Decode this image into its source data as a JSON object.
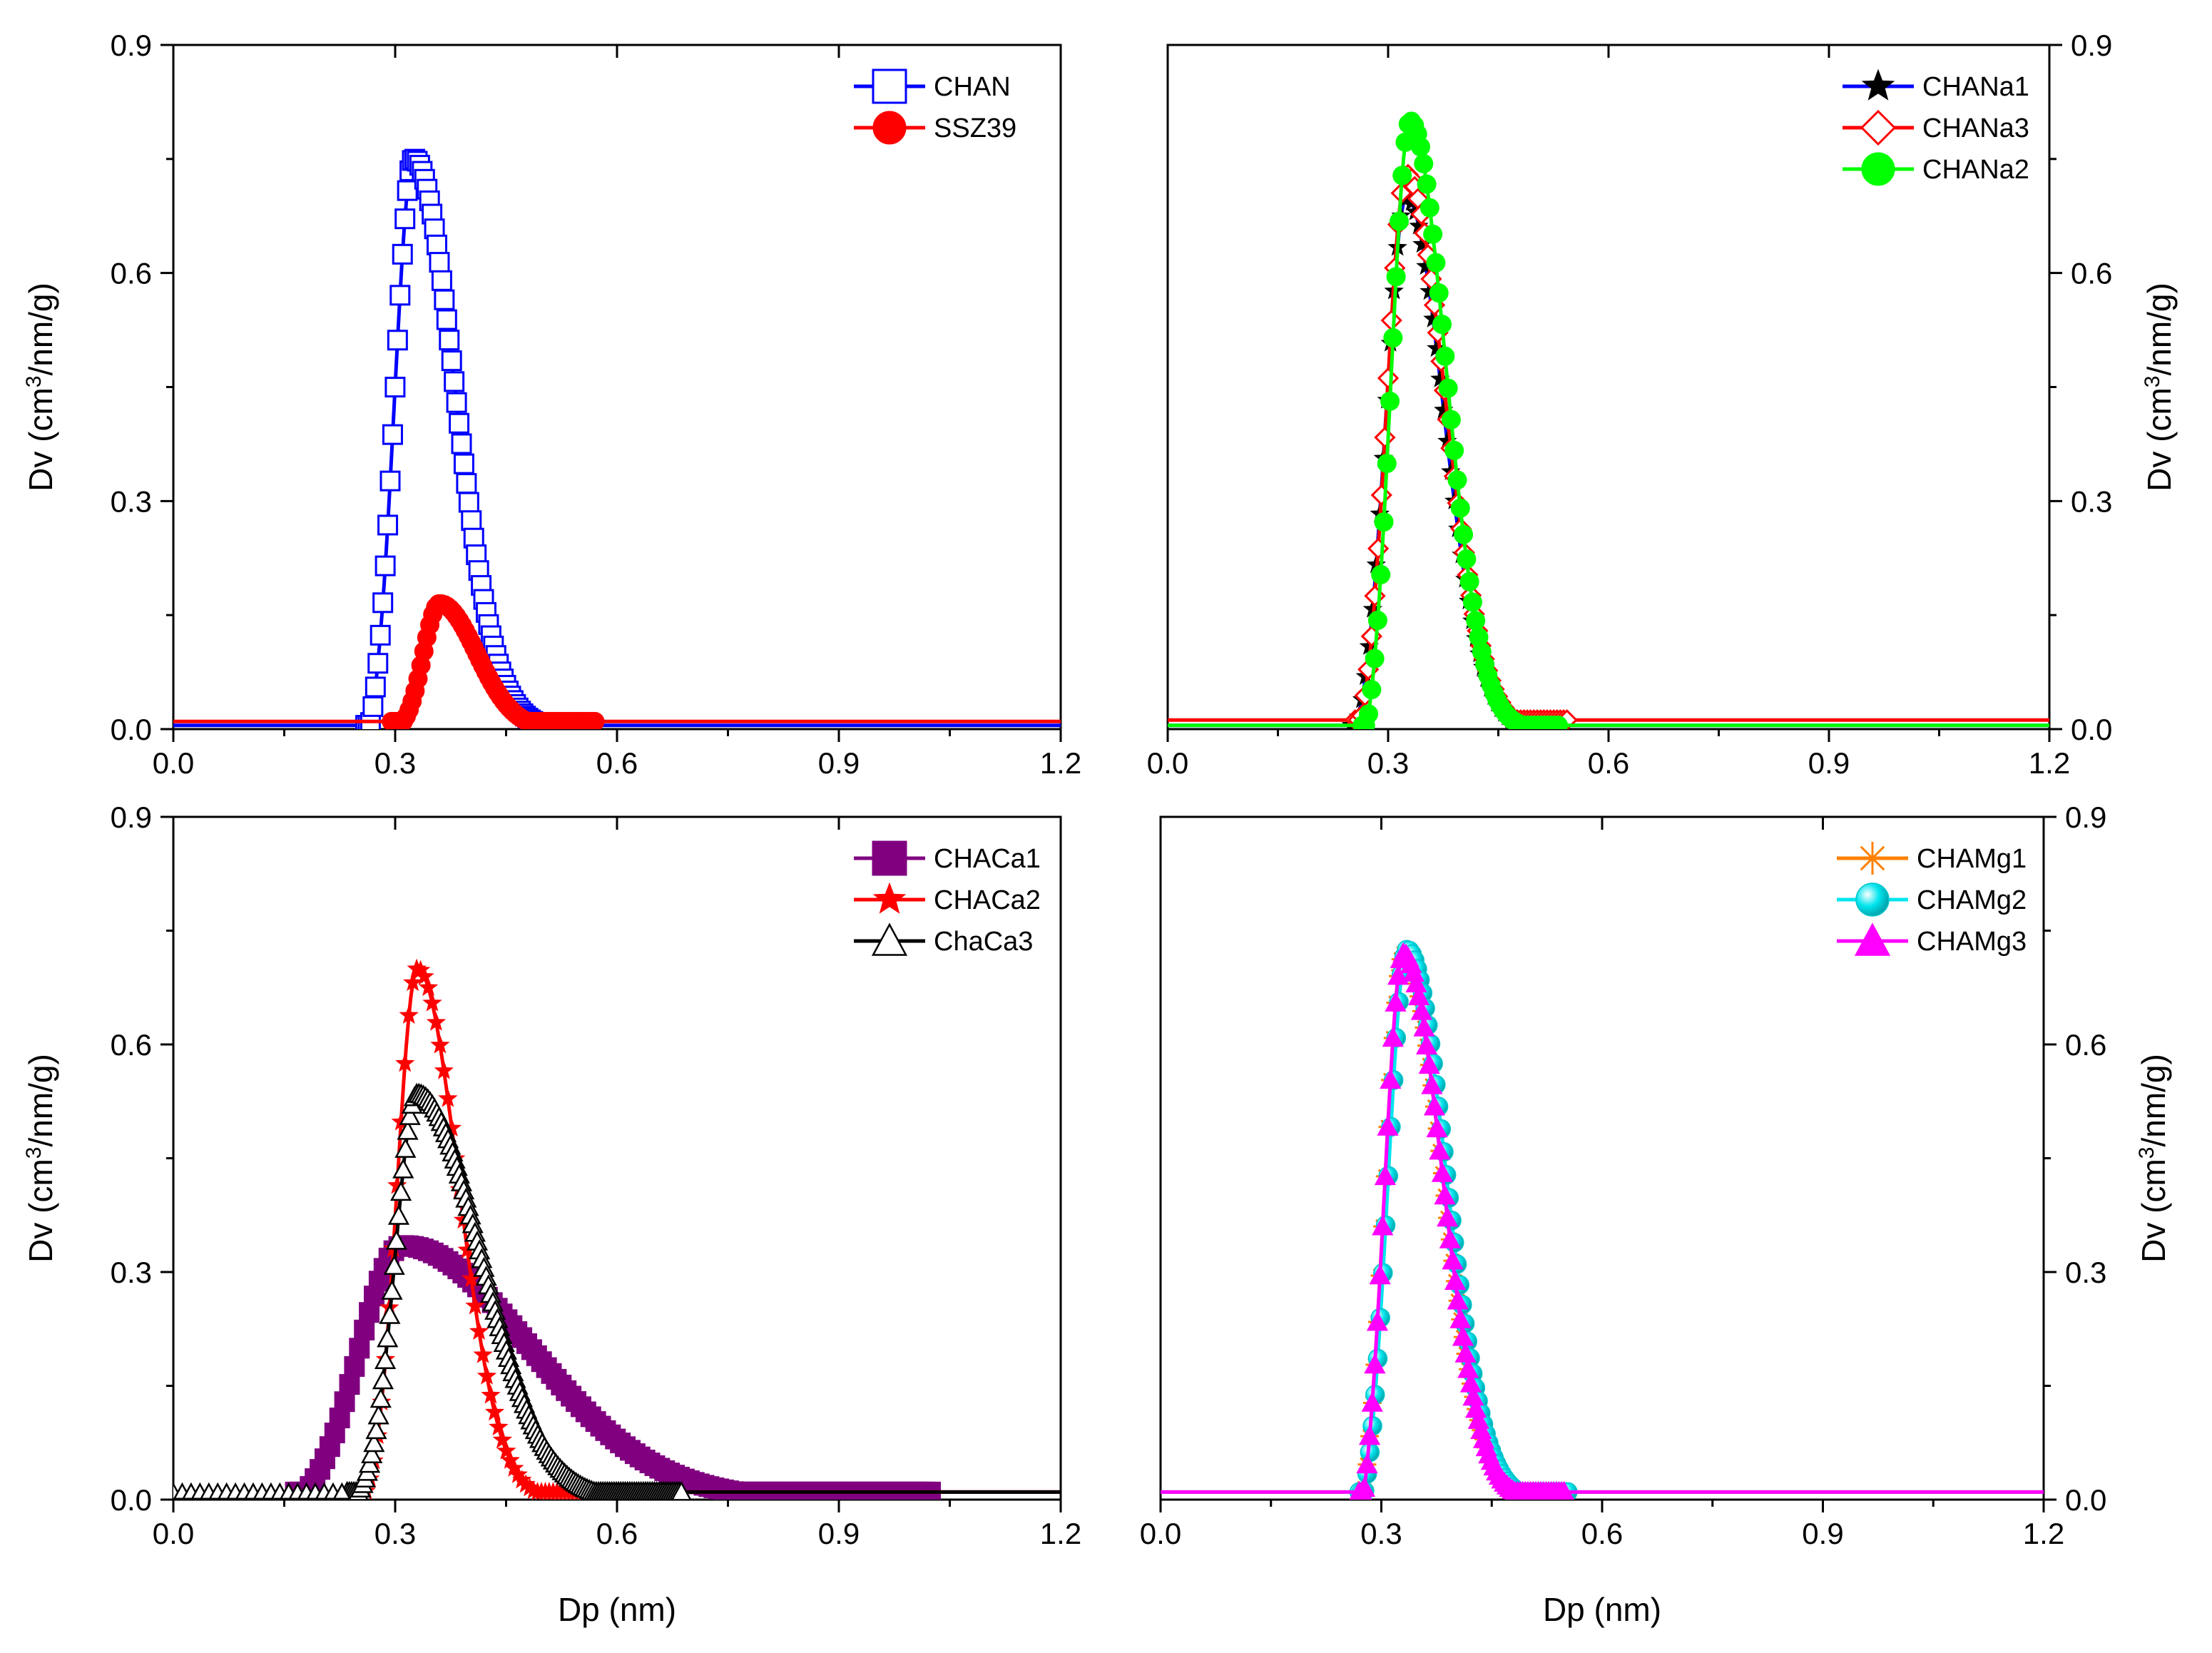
{
  "chart_data": [
    {
      "type": "line",
      "panel": "top-left",
      "xlabel": "",
      "ylabel": "Dv (cm3/nm/g)",
      "xlim": [
        0.0,
        1.2
      ],
      "ylim": [
        0.0,
        0.9
      ],
      "xticks": [
        "0.0",
        "0.3",
        "0.6",
        "0.9",
        "1.2"
      ],
      "yticks": [
        "0.0",
        "0.3",
        "0.6",
        "0.9"
      ],
      "yaxis_side": "left",
      "legend_position": "top-right",
      "series": [
        {
          "name": "CHAN",
          "color": "#0000ff",
          "marker": "square-open",
          "peak_x": 0.325,
          "peak_y": 0.75,
          "onset_x": 0.265,
          "sigma_left": 0.026,
          "sigma_right": 0.055,
          "baseline": 0.005,
          "points": 90
        },
        {
          "name": "SSZ39",
          "color": "#ff0000",
          "marker": "circle-filled",
          "peak_x": 0.36,
          "peak_y": 0.165,
          "onset_x": 0.3,
          "sigma_left": 0.022,
          "sigma_right": 0.05,
          "baseline": 0.01,
          "points": 70
        }
      ]
    },
    {
      "type": "line",
      "panel": "top-right",
      "xlabel": "",
      "ylabel": "Dv (cm3/nm/g)",
      "xlim": [
        0.0,
        1.2
      ],
      "ylim": [
        0.0,
        0.9
      ],
      "xticks": [
        "0.0",
        "0.3",
        "0.6",
        "0.9",
        "1.2"
      ],
      "yticks": [
        "0.0",
        "0.3",
        "0.6",
        "0.9"
      ],
      "yaxis_side": "right",
      "legend_position": "top-right",
      "series": [
        {
          "name": "CHANa1",
          "color": "#000000",
          "line_color": "#0000ff",
          "marker": "star-filled",
          "peak_x": 0.325,
          "peak_y": 0.7,
          "onset_x": 0.255,
          "sigma_left": 0.028,
          "sigma_right": 0.05,
          "baseline": 0.005,
          "points": 60
        },
        {
          "name": "CHANa3",
          "color": "#ff0000",
          "marker": "diamond-open",
          "peak_x": 0.325,
          "peak_y": 0.73,
          "onset_x": 0.26,
          "sigma_left": 0.027,
          "sigma_right": 0.052,
          "baseline": 0.012,
          "points": 65
        },
        {
          "name": "CHANa2",
          "color": "#00ff00",
          "marker": "circle-filled",
          "peak_x": 0.33,
          "peak_y": 0.8,
          "onset_x": 0.27,
          "sigma_left": 0.026,
          "sigma_right": 0.048,
          "baseline": 0.005,
          "points": 65
        }
      ]
    },
    {
      "type": "line",
      "panel": "bottom-left",
      "xlabel": "Dp (nm)",
      "ylabel": "Dv (cm3/nm/g)",
      "xlim": [
        0.0,
        1.2
      ],
      "ylim": [
        0.0,
        0.9
      ],
      "xticks": [
        "0.0",
        "0.3",
        "0.6",
        "0.9",
        "1.2"
      ],
      "yticks": [
        "0.0",
        "0.3",
        "0.6",
        "0.9"
      ],
      "yaxis_side": "left",
      "legend_position": "top-right",
      "series": [
        {
          "name": "CHACa1",
          "color": "#800080",
          "marker": "square-filled",
          "peak_x": 0.31,
          "peak_y": 0.335,
          "onset_x": 0.17,
          "sigma_left": 0.06,
          "sigma_right": 0.17,
          "baseline": 0.01,
          "points": 130
        },
        {
          "name": "CHACa2",
          "color": "#ff0000",
          "marker": "star-filled",
          "peak_x": 0.33,
          "peak_y": 0.7,
          "onset_x": 0.255,
          "sigma_left": 0.027,
          "sigma_right": 0.055,
          "baseline": 0.01,
          "points": 60
        },
        {
          "name": "ChaCa3",
          "color": "#000000",
          "marker": "triangle-open",
          "peak_x": 0.33,
          "peak_y": 0.535,
          "onset_x": 0.24,
          "sigma_left": 0.03,
          "sigma_right": 0.085,
          "baseline": 0.01,
          "points": 150
        }
      ]
    },
    {
      "type": "line",
      "panel": "bottom-right",
      "xlabel": "Dp (nm)",
      "ylabel": "Dv (cm3/nm/g)",
      "xlim": [
        0.0,
        1.2
      ],
      "ylim": [
        0.0,
        0.9
      ],
      "xticks": [
        "0.0",
        "0.3",
        "0.6",
        "0.9",
        "1.2"
      ],
      "yticks": [
        "0.0",
        "0.3",
        "0.6",
        "0.9"
      ],
      "yaxis_side": "right",
      "legend_position": "top-right",
      "series": [
        {
          "name": "CHAMg1",
          "color": "#ff8000",
          "marker": "asterisk",
          "peak_x": 0.33,
          "peak_y": 0.72,
          "onset_x": 0.275,
          "sigma_left": 0.026,
          "sigma_right": 0.052,
          "baseline": 0.01,
          "points": 80
        },
        {
          "name": "CHAMg2",
          "color": "#00e5ee",
          "marker": "sphere",
          "peak_x": 0.335,
          "peak_y": 0.725,
          "onset_x": 0.275,
          "sigma_left": 0.026,
          "sigma_right": 0.052,
          "baseline": 0.01,
          "points": 80
        },
        {
          "name": "CHAMg3",
          "color": "#ff00ff",
          "marker": "triangle-filled",
          "peak_x": 0.33,
          "peak_y": 0.72,
          "onset_x": 0.275,
          "sigma_left": 0.026,
          "sigma_right": 0.052,
          "baseline": 0.01,
          "points": 80
        }
      ]
    }
  ]
}
